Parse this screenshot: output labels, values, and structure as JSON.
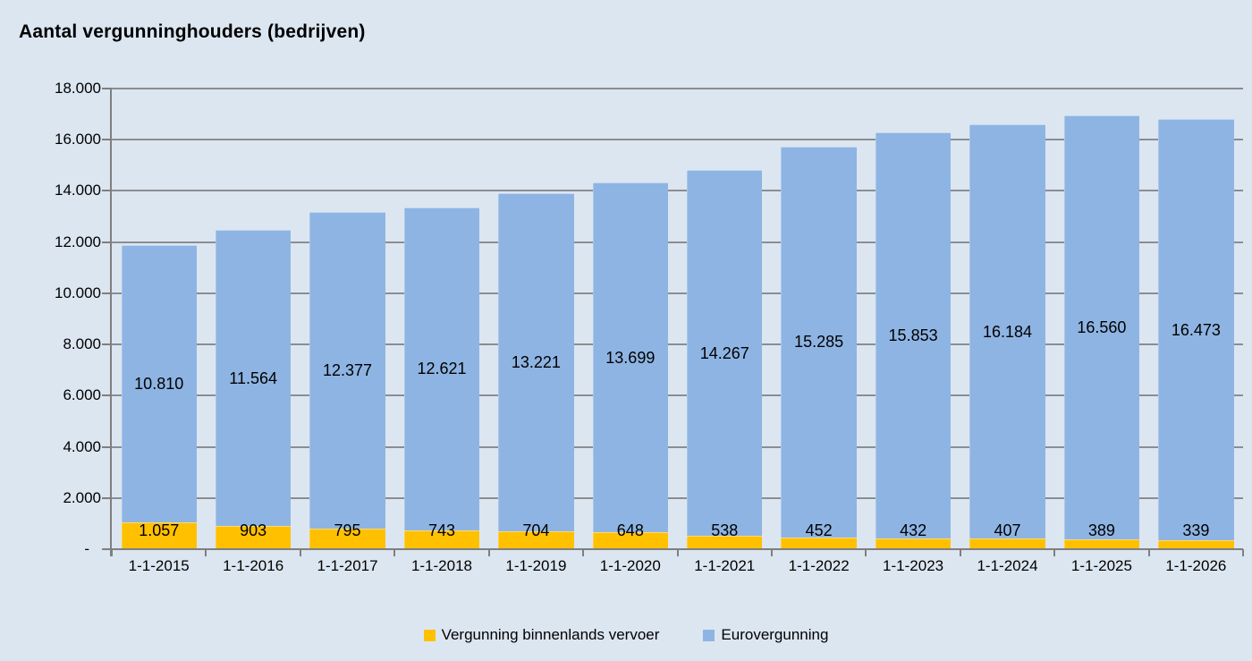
{
  "title": "Aantal vergunninghouders (bedrijven)",
  "colors": {
    "background": "#DCE6F1",
    "gridline": "#8A8D91",
    "axis": "#7F7F7F",
    "text": "#000000",
    "series_yellow": "#FFC000",
    "series_blue": "#8EB4E3"
  },
  "chart_data": {
    "type": "bar",
    "stacked": true,
    "title": "Aantal vergunninghouders (bedrijven)",
    "categories": [
      "1-1-2015",
      "1-1-2016",
      "1-1-2017",
      "1-1-2018",
      "1-1-2019",
      "1-1-2020",
      "1-1-2021",
      "1-1-2022",
      "1-1-2023",
      "1-1-2024",
      "1-1-2025",
      "1-1-2026"
    ],
    "series": [
      {
        "name": "Vergunning binnenlands vervoer",
        "color": "#FFC000",
        "values": [
          1057,
          903,
          795,
          743,
          704,
          648,
          538,
          452,
          432,
          407,
          389,
          339
        ],
        "value_labels": [
          "1.057",
          "903",
          "795",
          "743",
          "704",
          "648",
          "538",
          "452",
          "432",
          "407",
          "389",
          "339"
        ]
      },
      {
        "name": "Eurovergunning",
        "color": "#8EB4E3",
        "values": [
          10810,
          11564,
          12377,
          12621,
          13221,
          13699,
          14267,
          15285,
          15853,
          16184,
          16560,
          16473
        ],
        "value_labels": [
          "10.810",
          "11.564",
          "12.377",
          "12.621",
          "13.221",
          "13.699",
          "14.267",
          "15.285",
          "15.853",
          "16.184",
          "16.560",
          "16.473"
        ]
      }
    ],
    "xlabel": "",
    "ylabel": "",
    "ylim": [
      0,
      18000
    ],
    "y_tick_interval": 2000,
    "y_tick_labels": [
      "-",
      "2.000",
      "4.000",
      "6.000",
      "8.000",
      "10.000",
      "12.000",
      "14.000",
      "16.000",
      "18.000"
    ],
    "grid": true,
    "legend_position": "bottom"
  }
}
